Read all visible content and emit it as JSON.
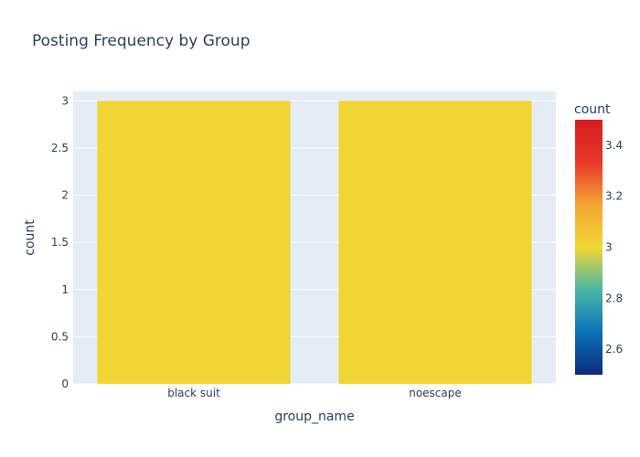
{
  "chart_data": {
    "type": "bar",
    "title": "Posting Frequency by Group",
    "xlabel": "group_name",
    "ylabel": "count",
    "categories": [
      "black suit",
      "noescape"
    ],
    "values": [
      3,
      3
    ],
    "ylim": [
      0,
      3.1
    ],
    "yticks": [
      0,
      0.5,
      1,
      1.5,
      2,
      2.5,
      3
    ],
    "ytick_labels": [
      "0",
      "0.5",
      "1",
      "1.5",
      "2",
      "2.5",
      "3"
    ],
    "grid": true,
    "colorbar": {
      "title": "count",
      "range": [
        2.5,
        3.5
      ],
      "ticks": [
        2.6,
        2.8,
        3,
        3.2,
        3.4
      ],
      "tick_labels": [
        "2.6",
        "2.8",
        "3",
        "3.2",
        "3.4"
      ],
      "colorscale": [
        "#0d2a7a",
        "#0a73b8",
        "#4bb6a6",
        "#f2d635",
        "#f3a532",
        "#e8382a",
        "#d61e1e"
      ]
    },
    "plot_bgcolor": "#e5ecf6",
    "bar_color": "#f0d535"
  }
}
